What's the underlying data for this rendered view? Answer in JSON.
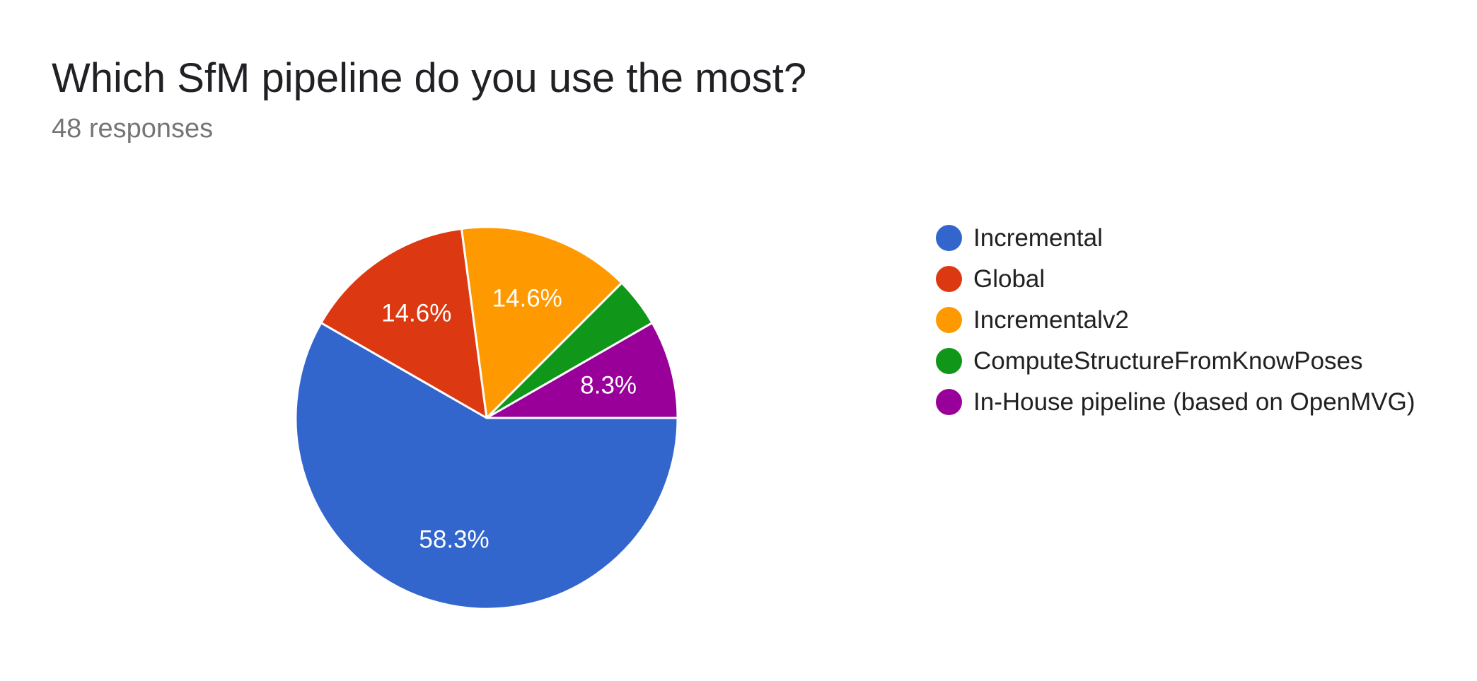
{
  "header": {
    "title": "Which SfM pipeline do you use the most?",
    "subtitle": "48 responses"
  },
  "chart_data": {
    "type": "pie",
    "title": "Which SfM pipeline do you use the most?",
    "subtitle": "48 responses",
    "total_responses": 48,
    "legend_position": "right",
    "start_angle_deg": 0,
    "direction": "clockwise",
    "slices": [
      {
        "name": "Incremental",
        "percent": 58.3,
        "color": "#3366cc",
        "label": "58.3%"
      },
      {
        "name": "Global",
        "percent": 14.6,
        "color": "#dc3912",
        "label": "14.6%"
      },
      {
        "name": "Incrementalv2",
        "percent": 14.6,
        "color": "#ff9900",
        "label": "14.6%"
      },
      {
        "name": "ComputeStructureFromKnowPoses",
        "percent": 4.2,
        "color": "#109618",
        "label": ""
      },
      {
        "name": "In-House pipeline (based on OpenMVG)",
        "percent": 8.3,
        "color": "#990099",
        "label": "8.3%"
      }
    ]
  }
}
